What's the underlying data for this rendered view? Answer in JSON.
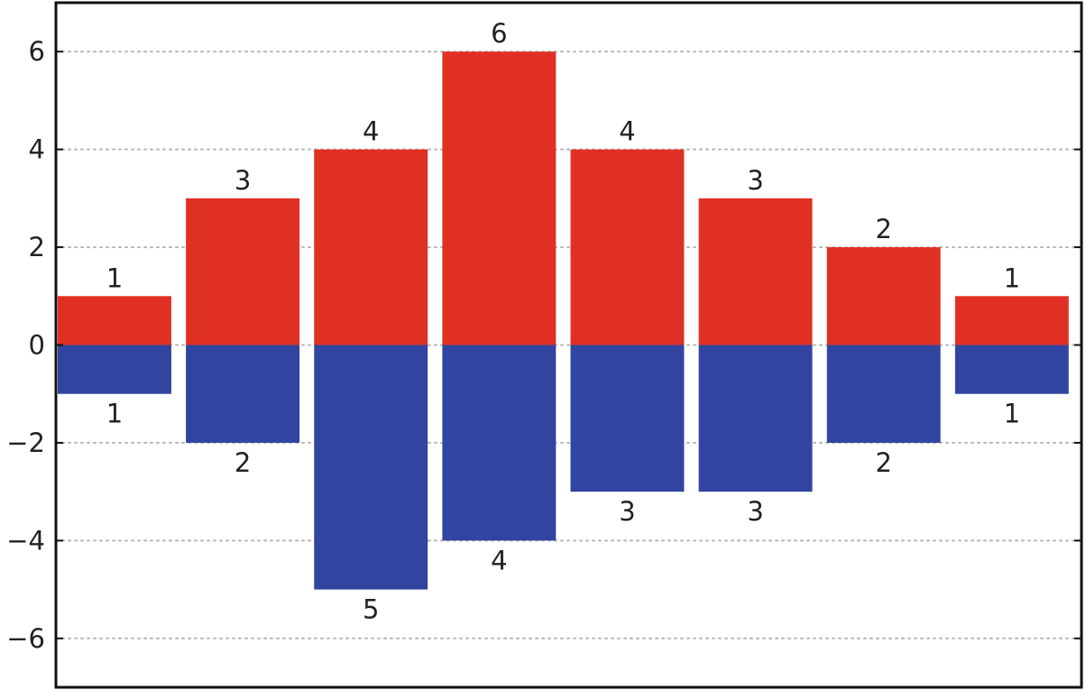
{
  "chart_data": {
    "type": "bar",
    "categories": [
      "",
      "",
      "",
      "",
      "",
      "",
      "",
      ""
    ],
    "series": [
      {
        "values": [
          1,
          3,
          4,
          6,
          4,
          3,
          2,
          1
        ],
        "color": "#e03024"
      },
      {
        "values": [
          -1,
          -2,
          -5,
          -4,
          -3,
          -3,
          -2,
          -1
        ],
        "color": "#3144a0"
      }
    ],
    "data_labels": {
      "positive": [
        "1",
        "3",
        "4",
        "6",
        "4",
        "3",
        "2",
        "1"
      ],
      "negative": [
        "1",
        "2",
        "5",
        "4",
        "3",
        "3",
        "2",
        "1"
      ]
    },
    "ylim": [
      -7,
      7
    ],
    "yticks": [
      6,
      4,
      2,
      0,
      -2,
      -4,
      -6
    ],
    "ytick_labels": [
      "6",
      "4",
      "2",
      "0",
      "−2",
      "−4",
      "−6"
    ],
    "grid": true,
    "grid_style": "dotted",
    "title": "",
    "xlabel": "",
    "ylabel": ""
  }
}
